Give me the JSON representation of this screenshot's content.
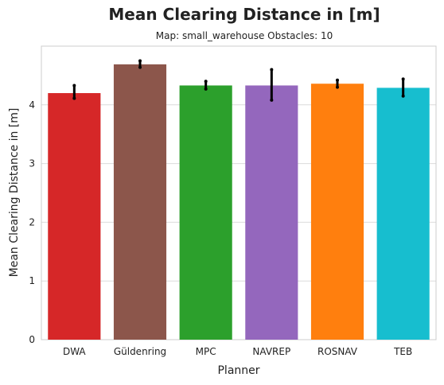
{
  "chart_data": {
    "type": "bar",
    "title": "Mean Clearing Distance in [m]",
    "subtitle": "Map: small_warehouse Obstacles: 10",
    "xlabel": "Planner",
    "ylabel": "Mean Clearing Distance in [m]",
    "ylim": [
      0,
      5
    ],
    "yticks": [
      "0",
      "1",
      "2",
      "3",
      "4"
    ],
    "grid": "horizontal",
    "categories": [
      "DWA",
      "Güldenring",
      "MPC",
      "NAVREP",
      "ROSNAV",
      "TEB"
    ],
    "values": [
      4.2,
      4.69,
      4.33,
      4.33,
      4.36,
      4.29
    ],
    "error_low": [
      4.11,
      4.64,
      4.27,
      4.08,
      4.3,
      4.15
    ],
    "error_high": [
      4.33,
      4.75,
      4.4,
      4.6,
      4.42,
      4.44
    ],
    "colors": [
      "#d62728",
      "#8c564b",
      "#2ca02c",
      "#9467bd",
      "#ff7f0e",
      "#17becf"
    ]
  }
}
